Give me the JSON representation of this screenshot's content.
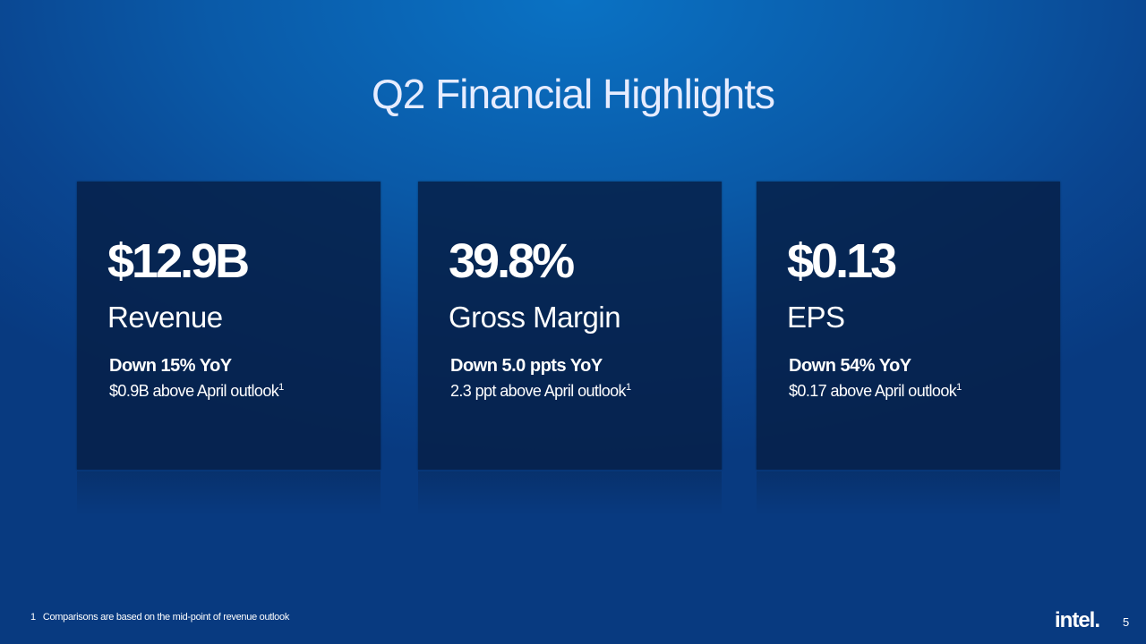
{
  "title": "Q2 Financial Highlights",
  "cards": [
    {
      "value": "$12.9B",
      "label": "Revenue",
      "change": "Down 15% YoY",
      "note": "$0.9B above April outlook",
      "note_ref": "1"
    },
    {
      "value": "39.8%",
      "label": "Gross Margin",
      "change": "Down 5.0 ppts YoY",
      "note": "2.3 ppt above April outlook",
      "note_ref": "1"
    },
    {
      "value": "$0.13",
      "label": "EPS",
      "change": "Down 54% YoY",
      "note": "$0.17 above April outlook",
      "note_ref": "1"
    }
  ],
  "footnote": {
    "marker": "1",
    "text": "Comparisons are based on the mid-point of revenue outlook"
  },
  "logo": "intel.",
  "page_number": "5"
}
